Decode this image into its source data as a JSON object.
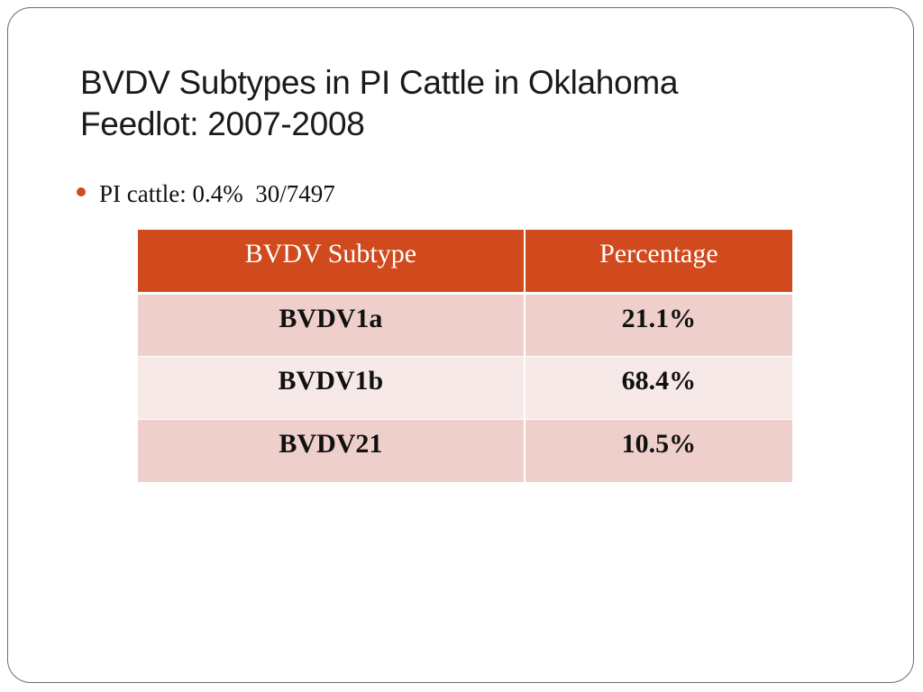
{
  "slide": {
    "title_lines": [
      "BVDV Subtypes in PI Cattle in Oklahoma",
      "Feedlot: 2007-2008"
    ],
    "bullets": [
      "PI cattle: 0.4%  30/7497"
    ]
  },
  "table": {
    "headers": [
      "BVDV Subtype",
      "Percentage"
    ],
    "rows": [
      [
        "BVDV1a",
        "21.1%"
      ],
      [
        "BVDV1b",
        "68.4%"
      ],
      [
        "BVDV21",
        "10.5%"
      ]
    ]
  },
  "colors": {
    "accent": "#d04a1e",
    "row_odd": "#efcfcb",
    "row_even": "#f7e9e7"
  }
}
